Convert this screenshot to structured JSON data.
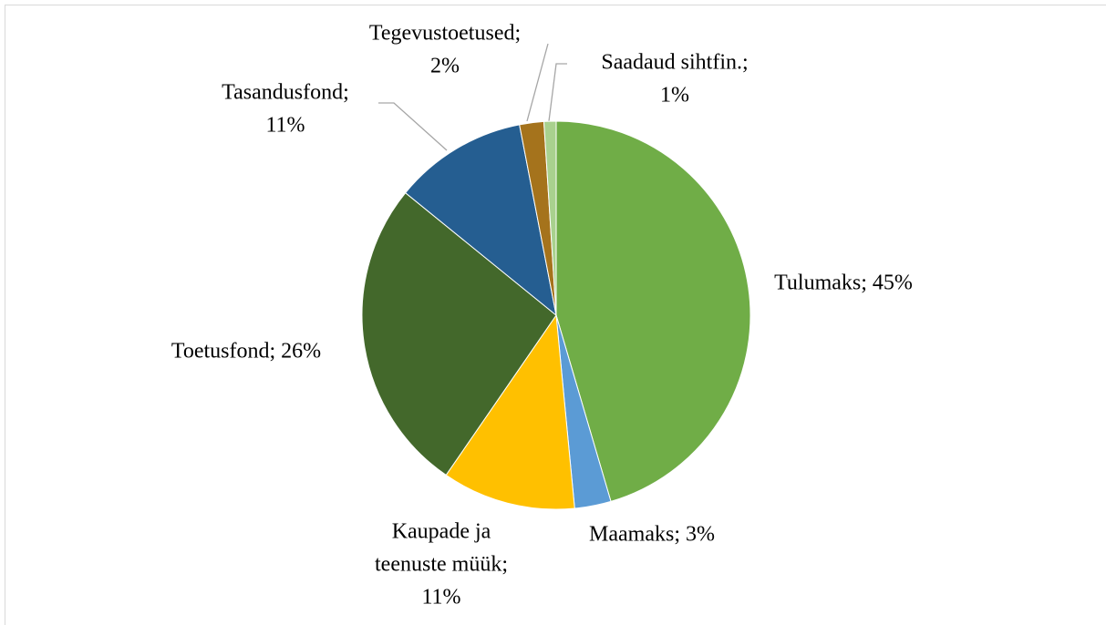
{
  "chart_data": {
    "type": "pie",
    "values": [
      45,
      3,
      11,
      26,
      11,
      2,
      1
    ],
    "value_labels": [
      [
        "Tulumaks; 45%"
      ],
      [
        "Maamaks; 3%"
      ],
      [
        "Kaupade ja",
        "teenuste müük;",
        "11%"
      ],
      [
        "Toetusfond; 26%"
      ],
      [
        "Tasandusfond;",
        "11%"
      ],
      [
        "Tegevustoetused;",
        "2%"
      ],
      [
        "Saadaud sihtfin.;",
        "1%"
      ]
    ],
    "colors": [
      "#70ad47",
      "#5b9bd5",
      "#ffc000",
      "#43682b",
      "#255e91",
      "#a5731c",
      "#a9d18e"
    ]
  }
}
